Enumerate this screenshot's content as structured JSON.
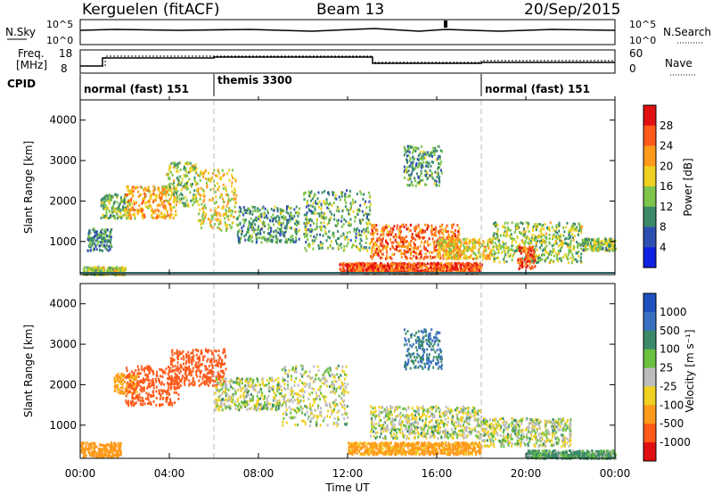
{
  "header": {
    "station": "Kerguelen (fitACF)",
    "beam": "Beam 13",
    "date": "20/Sep/2015"
  },
  "sky_panel": {
    "left_label": "N.Sky",
    "left_ticks": [
      "10^5",
      "10^0"
    ],
    "right_ticks": [
      "10^5",
      "10^0"
    ],
    "right_label": "N.Search"
  },
  "freq_panel": {
    "left_label_line1": "Freq.",
    "left_label_line2": "[MHz]",
    "left_ticks": [
      "18",
      "8"
    ],
    "right_ticks": [
      "60",
      "0"
    ],
    "right_label": "Nave"
  },
  "cpid": {
    "label": "CPID",
    "segments": [
      {
        "text": "normal (fast) 151",
        "start_hour": 0
      },
      {
        "text": "themis 3300",
        "start_hour": 6
      },
      {
        "text": "normal (fast) 151",
        "start_hour": 18
      }
    ]
  },
  "power_panel": {
    "ylabel": "Slant Range [km]",
    "cbar_label": "Power [dB]",
    "cbar_ticks": [
      "28",
      "24",
      "20",
      "16",
      "12",
      "8",
      "4"
    ],
    "cbar_colors": [
      "#e01010",
      "#ff5a1a",
      "#ff9a1a",
      "#f0d020",
      "#7cc44a",
      "#3a8a6a",
      "#2f4fb0",
      "#1020e0"
    ]
  },
  "velocity_panel": {
    "ylabel": "Slant Range [km]",
    "cbar_label": "Velocity [m s⁻¹]",
    "cbar_ticks": [
      "1000",
      "500",
      "100",
      "25",
      "-25",
      "-100",
      "-500",
      "-1000"
    ],
    "cbar_colors": [
      "#2050c0",
      "#3a70c0",
      "#3a8a6a",
      "#6ac040",
      "#bcbcbc",
      "#f0d020",
      "#ff9a1a",
      "#ff5a1a",
      "#e01010"
    ]
  },
  "y_ticks": [
    "1000",
    "2000",
    "3000",
    "4000"
  ],
  "x_ticks": [
    "00:00",
    "04:00",
    "08:00",
    "12:00",
    "16:00",
    "20:00",
    "00:00"
  ],
  "xlabel": "Time UT",
  "chart_data": [
    {
      "type": "heatmap",
      "title": "Kerguelen (fitACF) Beam 13 20/Sep/2015",
      "variable": "Power [dB]",
      "xlabel": "Time UT",
      "ylabel": "Slant Range [km]",
      "x_range_hours": [
        0,
        24
      ],
      "ylim": [
        180,
        4500
      ],
      "color_range": [
        0,
        30
      ],
      "blobs": [
        {
          "t0": 0.1,
          "t1": 2.0,
          "r0": 200,
          "r1": 400,
          "level": 14
        },
        {
          "t0": 0.3,
          "t1": 1.4,
          "r0": 800,
          "r1": 1350,
          "level": 9
        },
        {
          "t0": 0.9,
          "t1": 2.2,
          "r0": 1600,
          "r1": 2200,
          "level": 12
        },
        {
          "t0": 2.0,
          "t1": 4.3,
          "r0": 1600,
          "r1": 2400,
          "level": 20
        },
        {
          "t0": 3.8,
          "t1": 5.2,
          "r0": 1900,
          "r1": 3000,
          "level": 14
        },
        {
          "t0": 5.2,
          "t1": 7.0,
          "r0": 1300,
          "r1": 2800,
          "level": 17
        },
        {
          "t0": 7.0,
          "t1": 9.8,
          "r0": 1000,
          "r1": 1900,
          "level": 10
        },
        {
          "t0": 10.0,
          "t1": 13.0,
          "r0": 800,
          "r1": 2300,
          "level": 11
        },
        {
          "t0": 11.6,
          "t1": 18.0,
          "r0": 250,
          "r1": 500,
          "level": 26
        },
        {
          "t0": 13.0,
          "t1": 17.0,
          "r0": 600,
          "r1": 1450,
          "level": 24
        },
        {
          "t0": 14.5,
          "t1": 16.2,
          "r0": 2400,
          "r1": 3400,
          "level": 10
        },
        {
          "t0": 16.0,
          "t1": 18.5,
          "r0": 600,
          "r1": 1100,
          "level": 18
        },
        {
          "t0": 18.5,
          "t1": 22.5,
          "r0": 500,
          "r1": 1500,
          "level": 14
        },
        {
          "t0": 19.6,
          "t1": 20.4,
          "r0": 350,
          "r1": 900,
          "level": 27
        },
        {
          "t0": 22.5,
          "t1": 24.0,
          "r0": 800,
          "r1": 1100,
          "level": 12
        }
      ]
    },
    {
      "type": "heatmap",
      "title": "Kerguelen (fitACF) Beam 13 20/Sep/2015",
      "variable": "Velocity [m s⁻¹]",
      "xlabel": "Time UT",
      "ylabel": "Slant Range [km]",
      "x_range_hours": [
        0,
        24
      ],
      "ylim": [
        180,
        4500
      ],
      "blobs": [
        {
          "t0": 0.0,
          "t1": 1.8,
          "r0": 250,
          "r1": 600,
          "velocity": -200
        },
        {
          "t0": 1.5,
          "t1": 2.5,
          "r0": 1800,
          "r1": 2300,
          "velocity": -150
        },
        {
          "t0": 2.0,
          "t1": 4.4,
          "r0": 1500,
          "r1": 2500,
          "velocity": -600
        },
        {
          "t0": 4.0,
          "t1": 6.5,
          "r0": 2000,
          "r1": 2900,
          "velocity": -500
        },
        {
          "t0": 6.0,
          "t1": 9.0,
          "r0": 1400,
          "r1": 2200,
          "velocity": 0
        },
        {
          "t0": 9.0,
          "t1": 12.0,
          "r0": 1000,
          "r1": 2500,
          "velocity": 0
        },
        {
          "t0": 12.0,
          "t1": 18.0,
          "r0": 300,
          "r1": 600,
          "velocity": -150
        },
        {
          "t0": 13.0,
          "t1": 18.0,
          "r0": 700,
          "r1": 1500,
          "velocity": 0
        },
        {
          "t0": 14.5,
          "t1": 16.2,
          "r0": 2400,
          "r1": 3400,
          "velocity": 300
        },
        {
          "t0": 18.0,
          "t1": 22.0,
          "r0": 500,
          "r1": 1200,
          "velocity": 0
        },
        {
          "t0": 20.0,
          "t1": 24.0,
          "r0": 200,
          "r1": 400,
          "velocity": 80
        }
      ]
    }
  ]
}
